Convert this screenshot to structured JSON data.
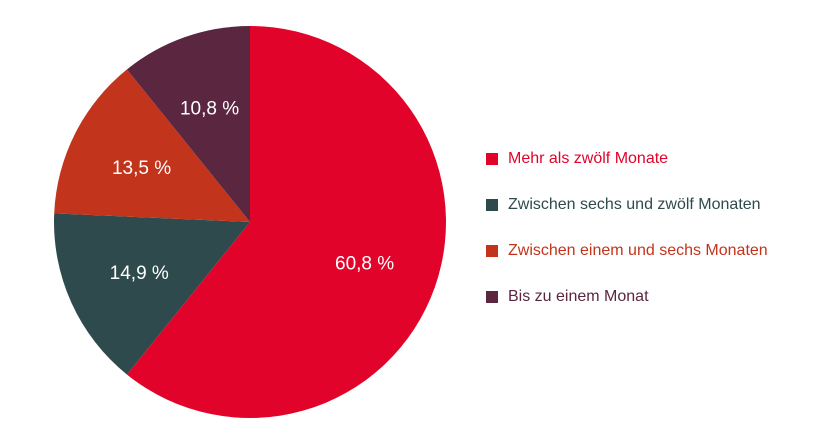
{
  "chart_data": {
    "type": "pie",
    "slices": [
      {
        "label": "Mehr als zwölf Monate",
        "value": 60.8,
        "display": "60,8 %",
        "color": "#e2032b",
        "legend_color": "#e2032b"
      },
      {
        "label": "Zwischen sechs und zwölf Monaten",
        "value": 14.9,
        "display": "14,9 %",
        "color": "#2f4a4c",
        "legend_color": "#2f4a4c"
      },
      {
        "label": "Zwischen einem und sechs Monaten",
        "value": 13.5,
        "display": "13,5 %",
        "color": "#c2341b",
        "legend_color": "#c2341b"
      },
      {
        "label": "Bis zu einem Monat",
        "value": 10.8,
        "display": "10,8 %",
        "color": "#5a2640",
        "legend_color": "#5a2640"
      }
    ],
    "start": "12 o'clock",
    "direction": "clockwise",
    "legend_position": "right"
  }
}
